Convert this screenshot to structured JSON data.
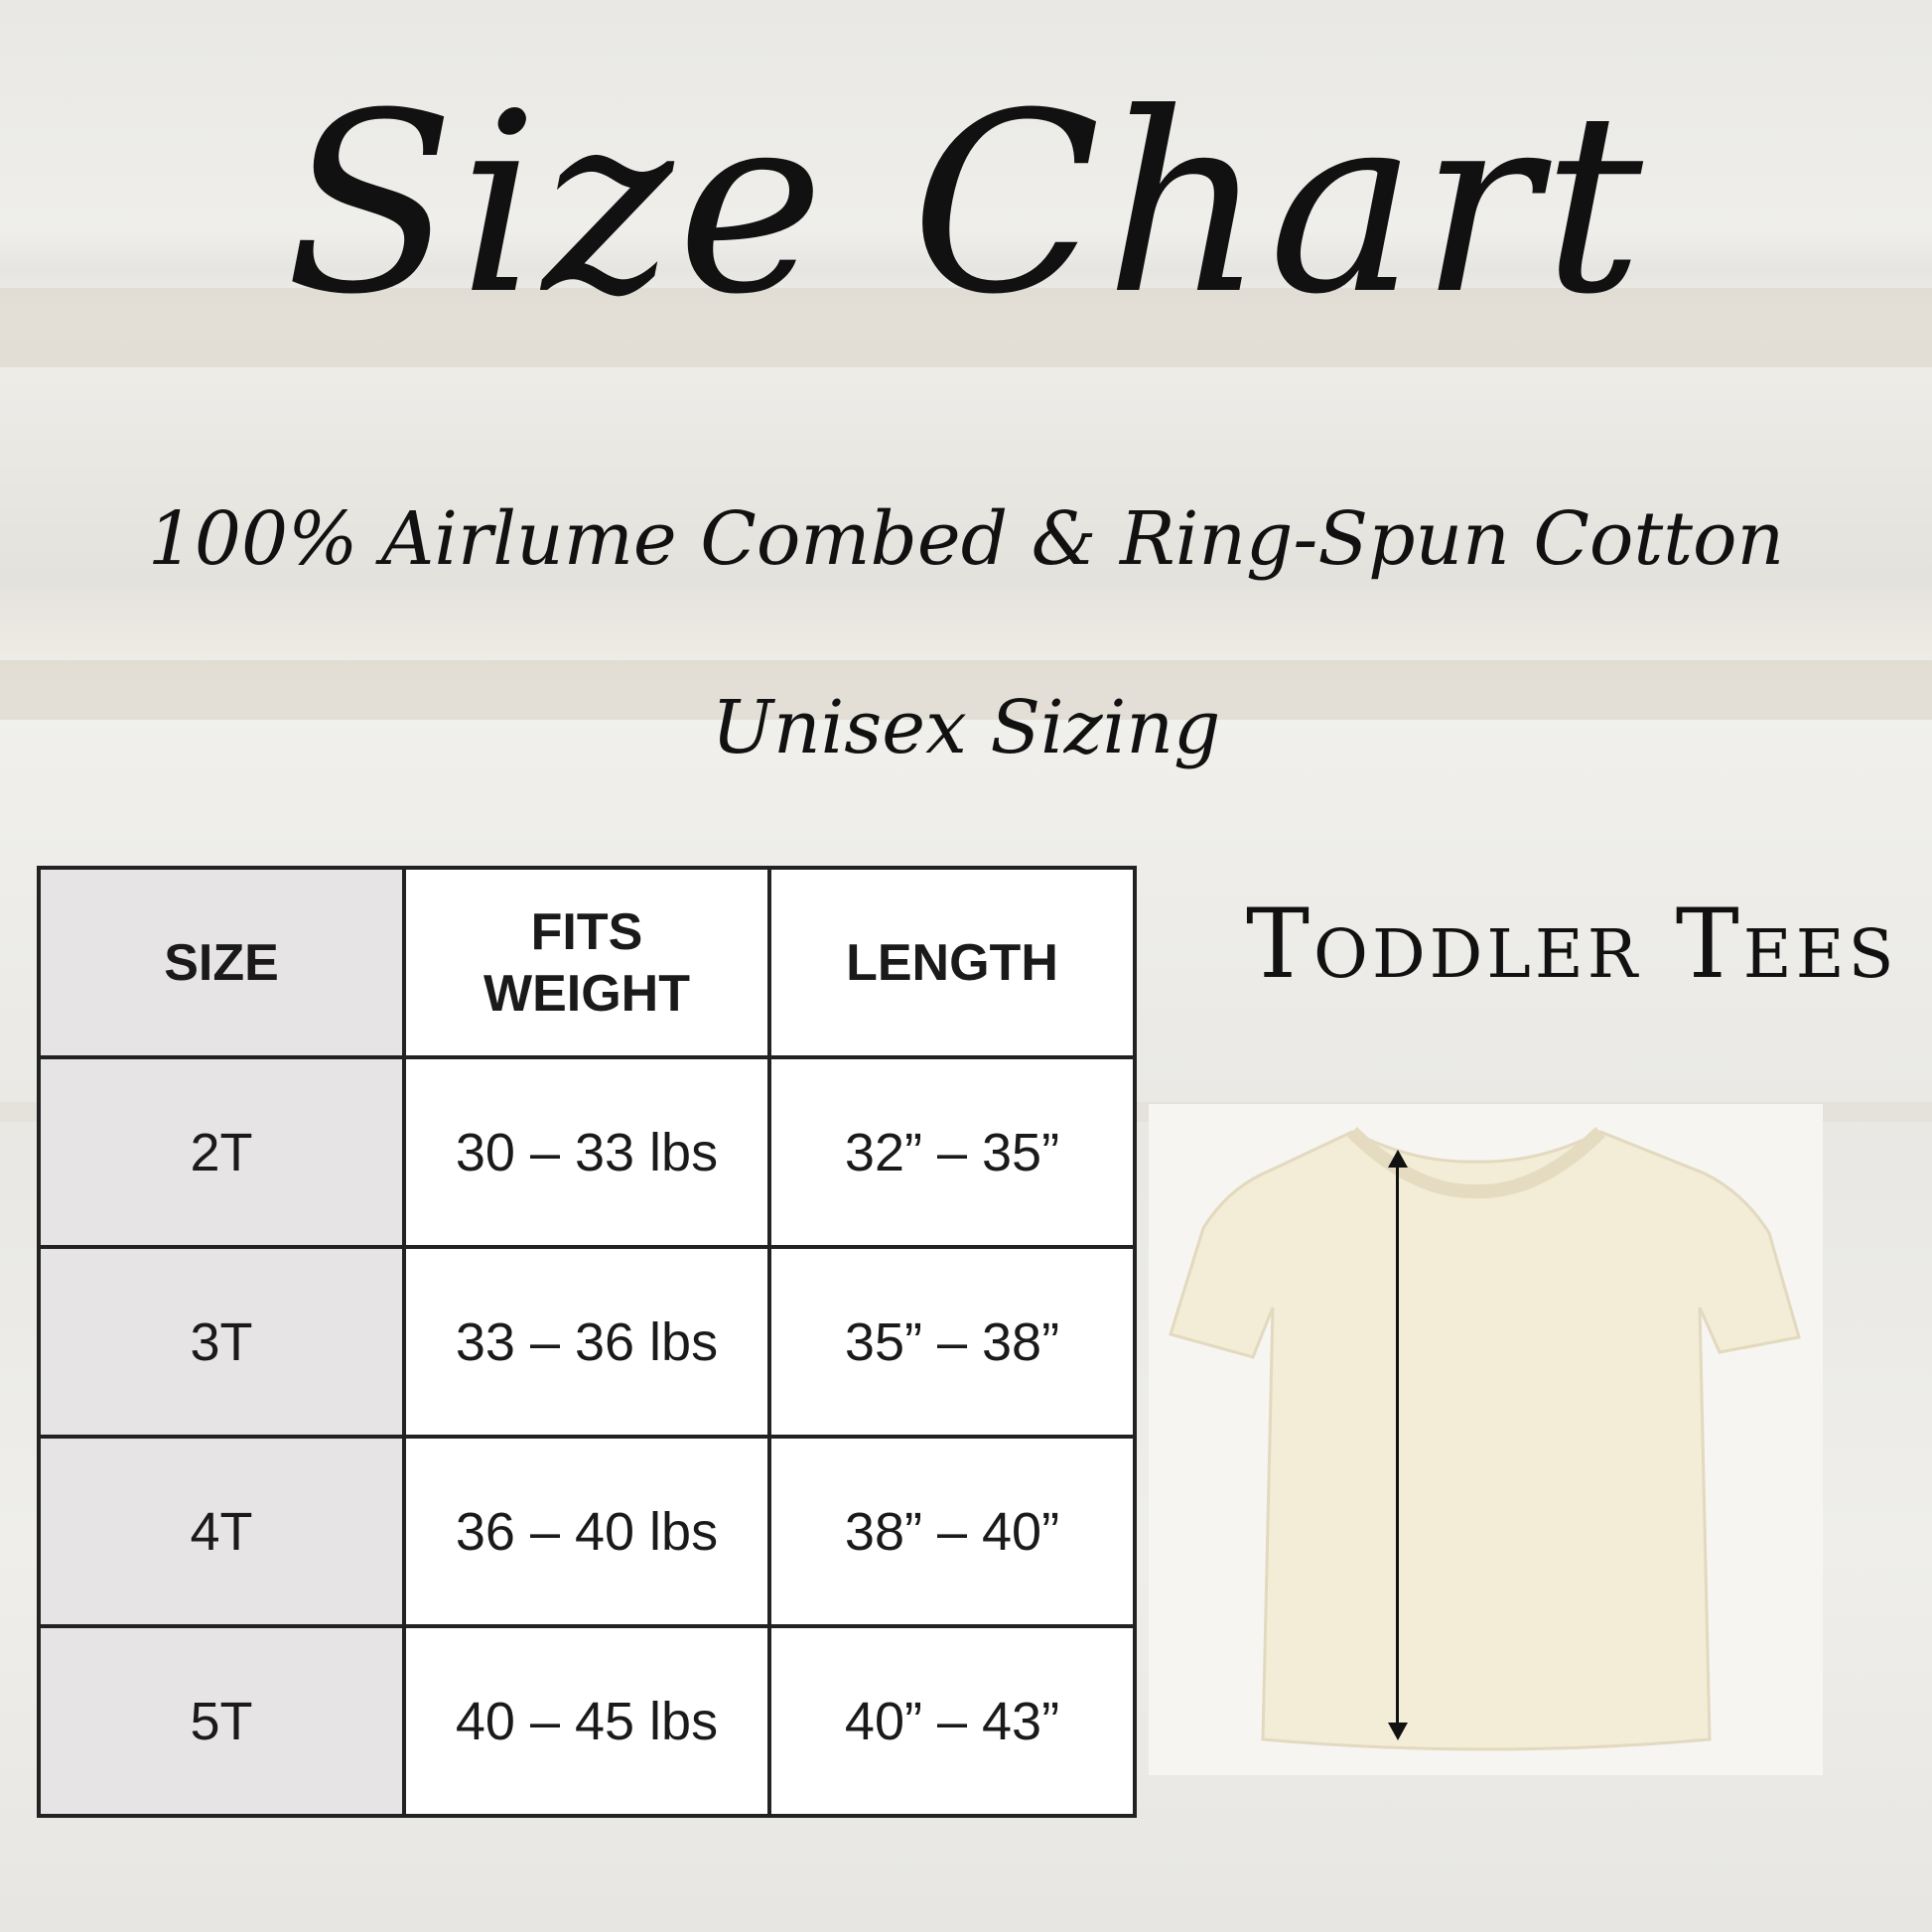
{
  "title": "Size Chart",
  "subtitle": "100% Airlume Combed & Ring-Spun Cotton",
  "sizing_note": "Unisex Sizing",
  "product_label": "Toddler Tees",
  "table": {
    "headers": [
      "SIZE",
      "FITS WEIGHT",
      "LENGTH"
    ],
    "rows": [
      [
        "2T",
        "30 – 33 lbs",
        "32” – 35”"
      ],
      [
        "3T",
        "33 – 36 lbs",
        "35” – 38”"
      ],
      [
        "4T",
        "36 – 40 lbs",
        "38” – 40”"
      ],
      [
        "5T",
        "40 – 45 lbs",
        "40” – 43”"
      ]
    ]
  },
  "colors": {
    "tee": "#f3ecd6",
    "size_column": "#e6e4e4",
    "text": "#111111"
  }
}
